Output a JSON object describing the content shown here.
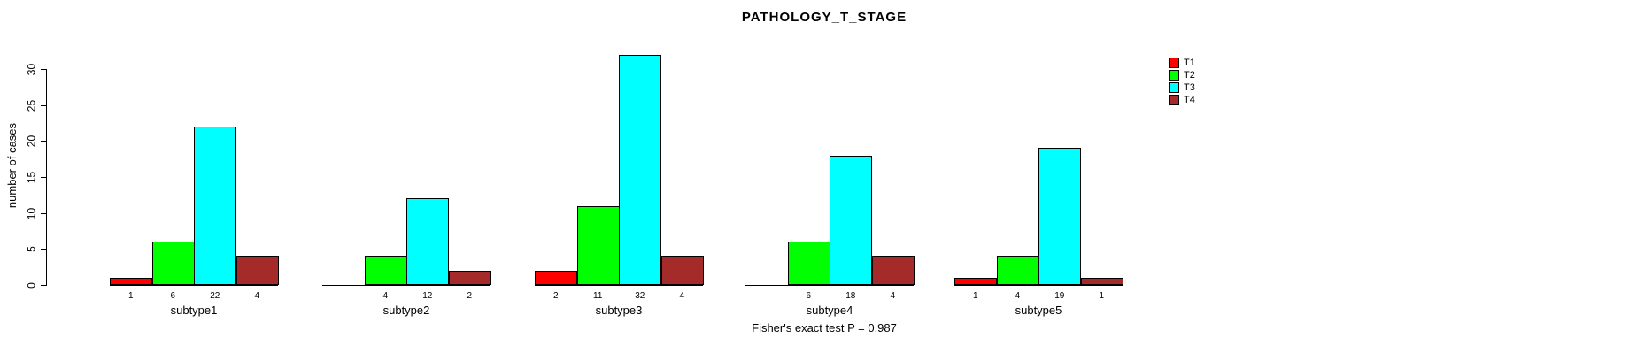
{
  "chart_data": {
    "type": "bar",
    "title": "PATHOLOGY_T_STAGE",
    "ylabel": "number of cases",
    "xlabel": "",
    "ylim": [
      0,
      30
    ],
    "yticks": [
      0,
      5,
      10,
      15,
      20,
      25,
      30
    ],
    "grid": false,
    "legend_position": "top-right",
    "categories": [
      "subtype1",
      "subtype2",
      "subtype3",
      "subtype4",
      "subtype5"
    ],
    "series": [
      {
        "name": "T1",
        "color": "#FF0000",
        "values": [
          1,
          0,
          2,
          0,
          1
        ]
      },
      {
        "name": "T2",
        "color": "#00FF00",
        "values": [
          6,
          4,
          11,
          6,
          4
        ]
      },
      {
        "name": "T3",
        "color": "#00FFFF",
        "values": [
          22,
          12,
          32,
          18,
          19
        ]
      },
      {
        "name": "T4",
        "color": "#A52A2A",
        "values": [
          4,
          2,
          4,
          4,
          1
        ]
      }
    ],
    "bar_value_labels_shown_when_zero": false,
    "annotation": "Fisher's exact test P = 0.987"
  }
}
